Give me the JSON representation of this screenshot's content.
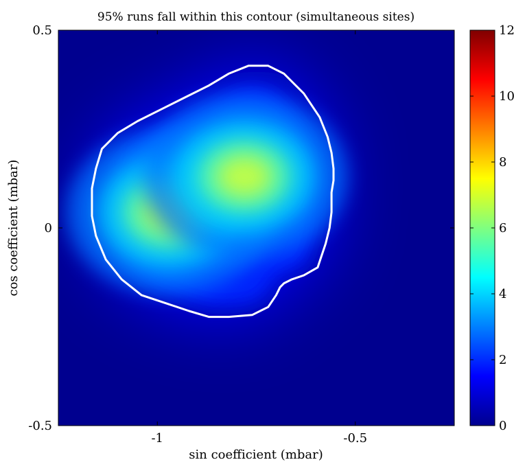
{
  "chart_data": {
    "type": "heatmap",
    "title": "95% runs fall within this contour (simultaneous sites)",
    "xlabel": "sin coefficient (mbar)",
    "ylabel": "cos coefficient (mbar)",
    "xlim": [
      -1.25,
      -0.25
    ],
    "ylim": [
      -0.5,
      0.5
    ],
    "x_ticks": [
      -1,
      -0.5
    ],
    "x_tick_labels": [
      "-1",
      "-0.5"
    ],
    "y_ticks": [
      -0.5,
      0,
      0.5
    ],
    "y_tick_labels": [
      "-0.5",
      "0",
      "0.5"
    ],
    "colorbar": {
      "colormap": "jet",
      "range": [
        0,
        12
      ],
      "ticks": [
        0,
        2,
        4,
        6,
        8,
        10,
        12
      ],
      "tick_labels": [
        "0",
        "2",
        "4",
        "6",
        "8",
        "10",
        "12"
      ]
    },
    "density_peaks": [
      {
        "x": -0.97,
        "y": 0.04,
        "value": 6.9
      },
      {
        "x": -0.78,
        "y": 0.13,
        "value": 6.8
      }
    ],
    "contour_95": {
      "color": "#ffffff",
      "x": [
        -0.77,
        -0.72,
        -0.68,
        -0.63,
        -0.59,
        -0.57,
        -0.56,
        -0.555,
        -0.555,
        -0.56,
        -0.56,
        -0.565,
        -0.575,
        -0.595,
        -0.63,
        -0.66,
        -0.68,
        -0.69,
        -0.7,
        -0.72,
        -0.76,
        -0.82,
        -0.87,
        -0.92,
        -0.98,
        -1.04,
        -1.09,
        -1.13,
        -1.155,
        -1.165,
        -1.165,
        -1.155,
        -1.14,
        -1.1,
        -1.05,
        -0.99,
        -0.93,
        -0.87,
        -0.82
      ],
      "y": [
        0.41,
        0.41,
        0.39,
        0.34,
        0.28,
        0.23,
        0.19,
        0.15,
        0.12,
        0.09,
        0.04,
        0.0,
        -0.04,
        -0.1,
        -0.12,
        -0.13,
        -0.14,
        -0.15,
        -0.17,
        -0.2,
        -0.22,
        -0.225,
        -0.225,
        -0.21,
        -0.19,
        -0.17,
        -0.13,
        -0.08,
        -0.02,
        0.03,
        0.1,
        0.15,
        0.2,
        0.24,
        0.27,
        0.3,
        0.33,
        0.36,
        0.39
      ]
    }
  }
}
